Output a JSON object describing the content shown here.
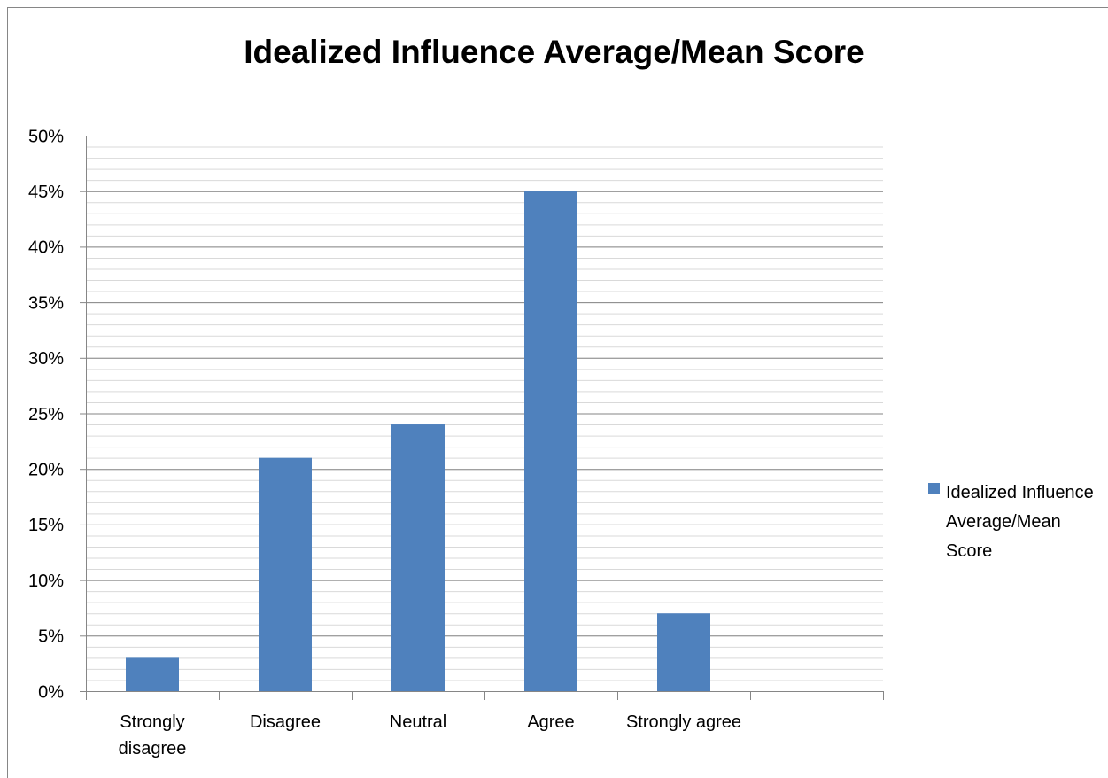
{
  "chart_data": {
    "type": "bar",
    "title": "Idealized Influence Average/Mean Score",
    "categories": [
      "Strongly disagree",
      "Disagree",
      "Neutral",
      "Agree",
      "Strongly agree",
      null
    ],
    "series": [
      {
        "name": "Idealized Influence Average/Mean Score",
        "color": "#4f81bd",
        "values": [
          3,
          21,
          24,
          45,
          7,
          null
        ]
      }
    ],
    "ylim": [
      0,
      50
    ],
    "yticks": [
      {
        "value": 0,
        "label": "0%"
      },
      {
        "value": 5,
        "label": "5%"
      },
      {
        "value": 10,
        "label": "10%"
      },
      {
        "value": 15,
        "label": "15%"
      },
      {
        "value": 20,
        "label": "20%"
      },
      {
        "value": 25,
        "label": "25%"
      },
      {
        "value": 30,
        "label": "30%"
      },
      {
        "value": 35,
        "label": "35%"
      },
      {
        "value": 40,
        "label": "40%"
      },
      {
        "value": 45,
        "label": "45%"
      },
      {
        "value": 50,
        "label": "50%"
      }
    ],
    "minor_yticks": [
      0,
      1,
      2,
      3,
      4,
      5,
      6,
      7,
      8,
      9,
      10,
      11,
      12,
      13,
      14,
      15,
      16,
      17,
      18,
      19,
      20,
      21,
      22,
      23,
      24,
      25,
      26,
      27,
      28,
      29,
      30,
      31,
      32,
      33,
      34,
      35,
      36,
      37,
      38,
      39,
      40,
      41,
      42,
      43,
      44,
      45,
      46,
      47,
      48,
      49,
      50
    ],
    "grid": true,
    "legend": "right"
  }
}
